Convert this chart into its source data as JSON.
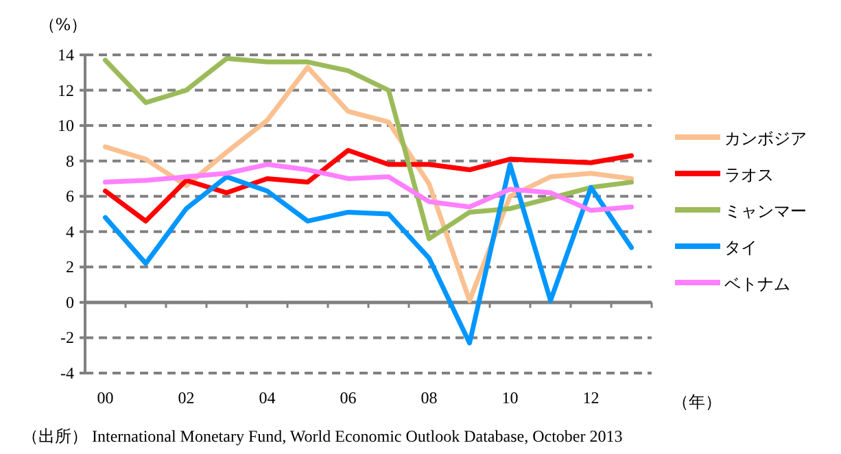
{
  "chart_data": {
    "type": "line",
    "ylabel": "（%）",
    "xlabel": "（年）",
    "categories": [
      "00",
      null,
      "02",
      null,
      "04",
      null,
      "06",
      null,
      "08",
      null,
      "10",
      null,
      "12",
      null
    ],
    "series": [
      {
        "name": "カンボジア",
        "color": "#fac090",
        "values": [
          8.8,
          8.1,
          6.6,
          8.5,
          10.3,
          13.3,
          10.8,
          10.2,
          6.7,
          0.1,
          6.0,
          7.1,
          7.3,
          7.0
        ]
      },
      {
        "name": "ラオス",
        "color": "#ff0000",
        "values": [
          6.3,
          4.6,
          6.9,
          6.2,
          7.0,
          6.8,
          8.6,
          7.8,
          7.8,
          7.5,
          8.1,
          8.0,
          7.9,
          8.3
        ]
      },
      {
        "name": "ミャンマー",
        "color": "#9bbb59",
        "values": [
          13.7,
          11.3,
          12.0,
          13.8,
          13.6,
          13.6,
          13.1,
          12.0,
          3.6,
          5.1,
          5.3,
          5.9,
          6.5,
          6.8
        ]
      },
      {
        "name": "タイ",
        "color": "#0096ff",
        "values": [
          4.8,
          2.2,
          5.3,
          7.1,
          6.3,
          4.6,
          5.1,
          5.0,
          2.5,
          -2.3,
          7.8,
          0.1,
          6.5,
          3.1
        ]
      },
      {
        "name": "ベトナム",
        "color": "#ff80ff",
        "values": [
          6.8,
          6.9,
          7.1,
          7.3,
          7.8,
          7.5,
          7.0,
          7.1,
          5.7,
          5.4,
          6.4,
          6.2,
          5.2,
          5.4
        ]
      }
    ],
    "ylim": [
      -4,
      14
    ],
    "yticks": [
      -4,
      -2,
      0,
      2,
      4,
      6,
      8,
      10,
      12,
      14
    ],
    "grid": "y",
    "legend": "right",
    "marker": "none",
    "line_style": "solid",
    "annotations": [
      "（出所） International Monetary Fund, World Economic Outlook Database, October 2013"
    ]
  }
}
